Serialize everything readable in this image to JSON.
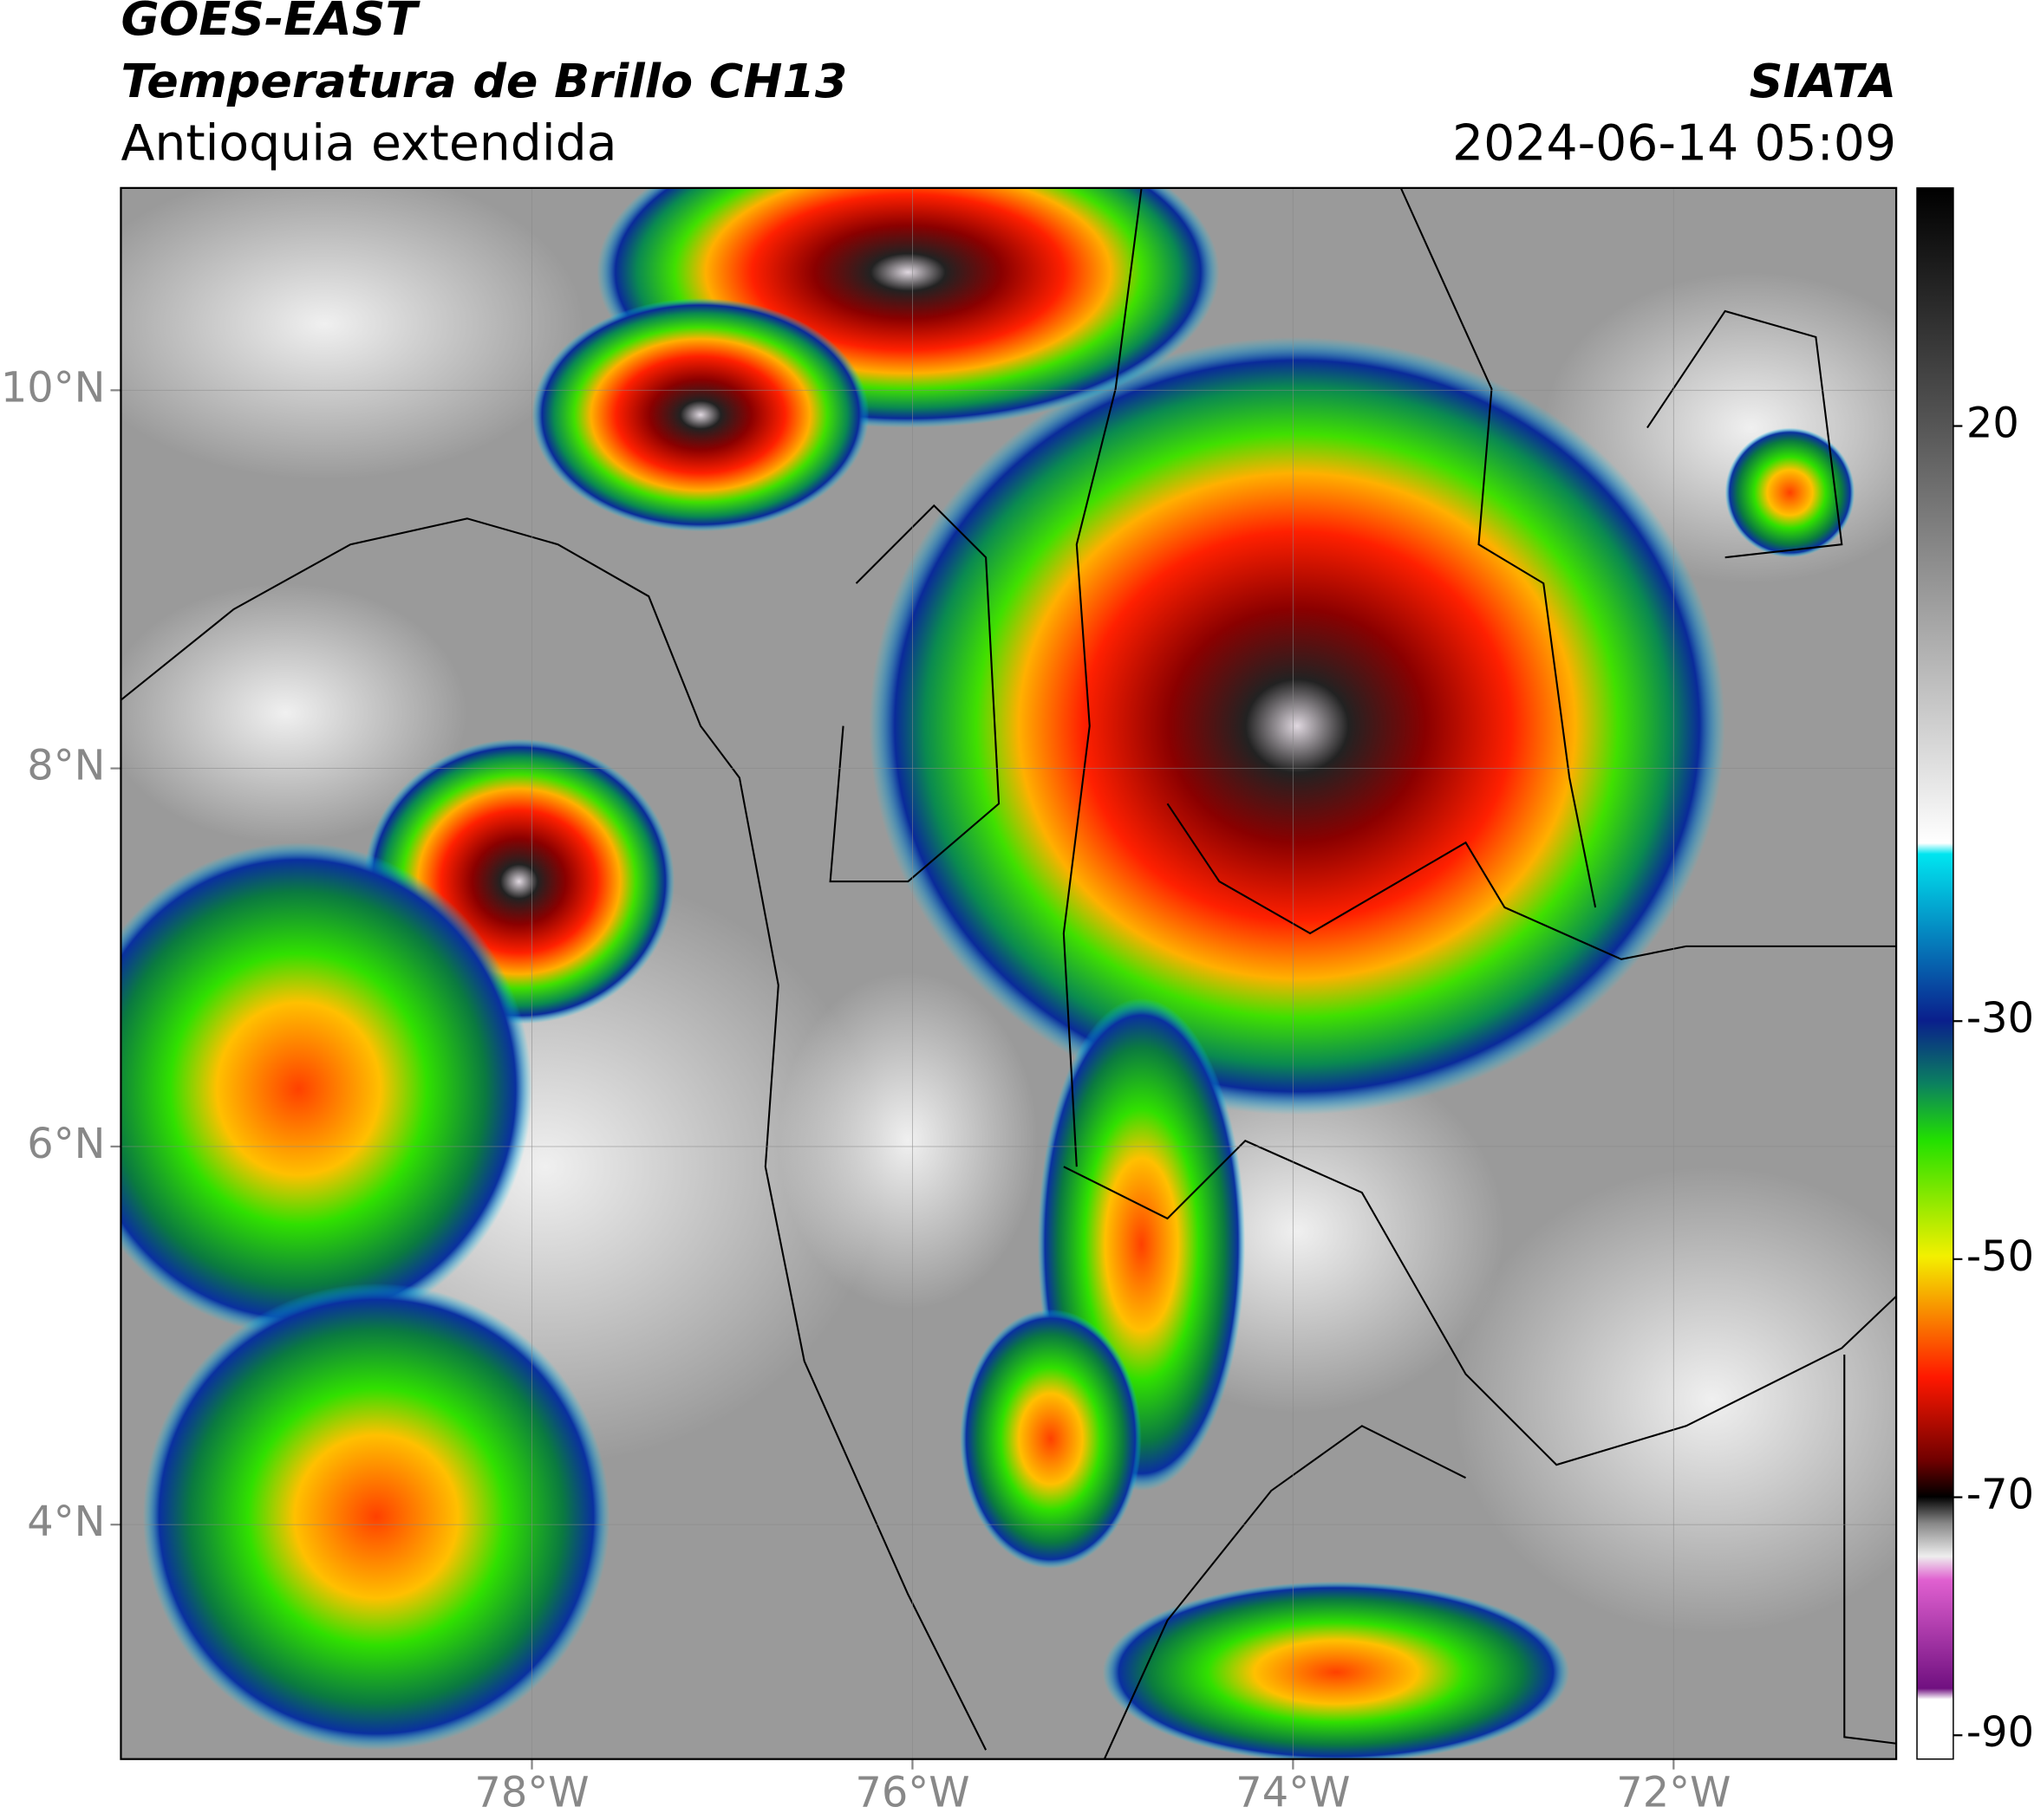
{
  "header": {
    "satellite": "GOES-EAST",
    "product": "Temperatura de Brillo CH13",
    "region": "Antioquia extendida",
    "agency": "SIATA",
    "datetime": "2024-06-14 05:09"
  },
  "map": {
    "xlim": [
      -80.16,
      -70.83
    ],
    "ylim": [
      2.76,
      11.07
    ],
    "xticks": [
      {
        "value": -78,
        "label": "78°W"
      },
      {
        "value": -76,
        "label": "76°W"
      },
      {
        "value": -74,
        "label": "74°W"
      },
      {
        "value": -72,
        "label": "72°W"
      }
    ],
    "yticks": [
      {
        "value": 4,
        "label": "4°N"
      },
      {
        "value": 6,
        "label": "6°N"
      },
      {
        "value": 8,
        "label": "8°N"
      },
      {
        "value": 10,
        "label": "10°N"
      }
    ],
    "grid": true
  },
  "colorbar": {
    "clim": [
      -92,
      40
    ],
    "ticks": [
      20,
      -30,
      -50,
      -70,
      -90
    ]
  }
}
